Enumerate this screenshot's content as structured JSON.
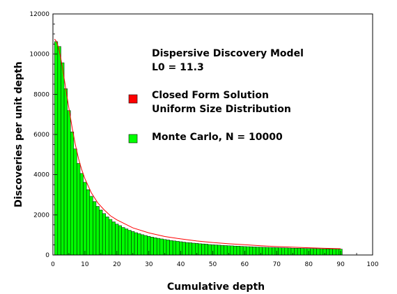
{
  "chart_data": {
    "type": "bar",
    "title": "",
    "xlabel": "Cumulative depth",
    "ylabel": "Discoveries per unit depth",
    "xlim": [
      0,
      100
    ],
    "ylim": [
      0,
      12000
    ],
    "x_ticks": [
      0,
      10,
      20,
      30,
      40,
      50,
      60,
      70,
      80,
      90,
      100
    ],
    "y_ticks": [
      0,
      2000,
      4000,
      6000,
      8000,
      10000,
      12000
    ],
    "grid": false,
    "colors": {
      "monte_carlo": "#00ff00",
      "closed_form": "#ff0000",
      "bar_edge": "#000000"
    },
    "annotations": [
      "Dispersive Discovery Model",
      "L0 = 11.3"
    ],
    "legend": [
      {
        "label_lines": [
          "Closed Form Solution",
          "Uniform Size Distribution"
        ],
        "color": "#ff0000"
      },
      {
        "label_lines": [
          "Monte Carlo, N = 10000"
        ],
        "color": "#00ff00"
      }
    ],
    "series": [
      {
        "name": "Monte Carlo, N = 10000",
        "style": "bars",
        "x": [
          1,
          2,
          3,
          4,
          5,
          6,
          7,
          8,
          9,
          10,
          11,
          12,
          13,
          14,
          15,
          16,
          17,
          18,
          19,
          20,
          21,
          22,
          23,
          24,
          25,
          26,
          27,
          28,
          29,
          30,
          31,
          32,
          33,
          34,
          35,
          36,
          37,
          38,
          39,
          40,
          41,
          42,
          43,
          44,
          45,
          46,
          47,
          48,
          49,
          50,
          51,
          52,
          53,
          54,
          55,
          56,
          57,
          58,
          59,
          60,
          61,
          62,
          63,
          64,
          65,
          66,
          67,
          68,
          69,
          70,
          71,
          72,
          73,
          74,
          75,
          76,
          77,
          78,
          79,
          80,
          81,
          82,
          83,
          84,
          85,
          86,
          87,
          88,
          89,
          90
        ],
        "values": [
          10620,
          10380,
          9570,
          8280,
          7190,
          6130,
          5280,
          4560,
          4060,
          3620,
          3250,
          2920,
          2660,
          2420,
          2240,
          2060,
          1900,
          1770,
          1650,
          1540,
          1460,
          1370,
          1300,
          1230,
          1170,
          1110,
          1060,
          1010,
          970,
          930,
          890,
          860,
          830,
          800,
          770,
          750,
          720,
          700,
          680,
          660,
          640,
          620,
          610,
          590,
          580,
          560,
          550,
          540,
          520,
          510,
          500,
          490,
          480,
          470,
          460,
          455,
          445,
          440,
          430,
          420,
          415,
          410,
          400,
          395,
          390,
          385,
          380,
          375,
          370,
          365,
          360,
          355,
          350,
          345,
          340,
          338,
          335,
          330,
          325,
          320,
          318,
          315,
          312,
          308,
          305,
          302,
          300,
          298,
          295,
          292
        ]
      },
      {
        "name": "Closed Form Solution Uniform Size Distribution",
        "style": "line",
        "x": [
          0.5,
          1,
          1.5,
          2,
          2.5,
          3,
          4,
          5,
          6,
          7,
          8,
          9,
          10,
          12,
          14,
          16,
          18,
          20,
          25,
          30,
          35,
          40,
          45,
          50,
          55,
          60,
          65,
          70,
          75,
          80,
          85,
          90
        ],
        "values": [
          10750,
          10650,
          10450,
          10150,
          9750,
          9300,
          8300,
          7300,
          6350,
          5500,
          4800,
          4250,
          3800,
          3100,
          2600,
          2250,
          1950,
          1750,
          1350,
          1100,
          920,
          800,
          700,
          620,
          560,
          510,
          460,
          420,
          390,
          360,
          335,
          310
        ]
      }
    ]
  }
}
